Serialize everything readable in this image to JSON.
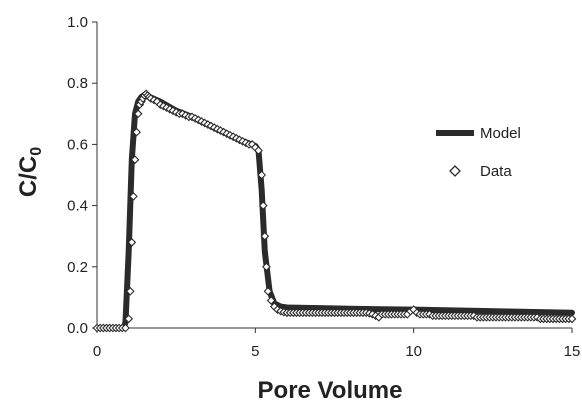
{
  "chart_data": {
    "type": "scatter",
    "title": "",
    "xlabel": "Pore Volume",
    "ylabel_main": "C/C",
    "ylabel_sub": "0",
    "xlim": [
      0,
      15
    ],
    "ylim": [
      0,
      1.0
    ],
    "xticks": [
      "0",
      "5",
      "10",
      "15"
    ],
    "yticks": [
      "0.0",
      "0.2",
      "0.4",
      "0.6",
      "0.8",
      "1.0"
    ],
    "grid": false,
    "legend_position": "right",
    "series": [
      {
        "name": "Model",
        "kind": "line",
        "color": "#2b2b2b",
        "x": [
          0,
          0.85,
          0.9,
          1.0,
          1.1,
          1.2,
          1.3,
          1.4,
          1.5,
          1.6,
          2.0,
          2.5,
          3.0,
          3.5,
          4.0,
          4.5,
          5.0,
          5.1,
          5.2,
          5.3,
          5.45,
          5.6,
          5.8,
          6.0,
          7.0,
          8.0,
          9.0,
          10.0,
          11.0,
          12.0,
          13.0,
          14.0,
          15.0
        ],
        "y": [
          0,
          0,
          0.02,
          0.25,
          0.55,
          0.7,
          0.74,
          0.755,
          0.762,
          0.758,
          0.74,
          0.71,
          0.69,
          0.665,
          0.64,
          0.615,
          0.595,
          0.58,
          0.45,
          0.25,
          0.12,
          0.08,
          0.07,
          0.067,
          0.065,
          0.063,
          0.061,
          0.06,
          0.058,
          0.056,
          0.054,
          0.052,
          0.05
        ]
      },
      {
        "name": "Data",
        "kind": "markers",
        "marker": "diamond",
        "color": "#2b2b2b",
        "x": [
          0.0,
          0.1,
          0.2,
          0.3,
          0.4,
          0.5,
          0.6,
          0.7,
          0.8,
          0.9,
          1.0,
          1.05,
          1.1,
          1.15,
          1.2,
          1.25,
          1.3,
          1.35,
          1.4,
          1.45,
          1.5,
          1.55,
          1.6,
          1.65,
          1.7,
          1.8,
          1.9,
          2.0,
          2.1,
          2.2,
          2.3,
          2.4,
          2.5,
          2.6,
          2.7,
          2.8,
          2.9,
          3.0,
          3.1,
          3.2,
          3.3,
          3.4,
          3.5,
          3.6,
          3.7,
          3.8,
          3.9,
          4.0,
          4.1,
          4.2,
          4.3,
          4.4,
          4.5,
          4.6,
          4.7,
          4.8,
          4.9,
          5.0,
          5.1,
          5.2,
          5.25,
          5.3,
          5.35,
          5.4,
          5.5,
          5.6,
          5.7,
          5.8,
          5.9,
          6.0,
          6.1,
          6.2,
          6.3,
          6.4,
          6.5,
          6.6,
          6.7,
          6.8,
          6.9,
          7.0,
          7.1,
          7.2,
          7.3,
          7.4,
          7.5,
          7.6,
          7.7,
          7.8,
          7.9,
          8.0,
          8.1,
          8.2,
          8.3,
          8.4,
          8.5,
          8.6,
          8.7,
          8.8,
          8.9,
          9.0,
          9.1,
          9.2,
          9.3,
          9.4,
          9.5,
          9.6,
          9.7,
          9.8,
          9.9,
          10.0,
          10.1,
          10.2,
          10.3,
          10.4,
          10.5,
          10.6,
          10.7,
          10.8,
          10.9,
          11.0,
          11.1,
          11.2,
          11.3,
          11.4,
          11.5,
          11.6,
          11.7,
          11.8,
          11.9,
          12.0,
          12.1,
          12.2,
          12.3,
          12.4,
          12.5,
          12.6,
          12.7,
          12.8,
          12.9,
          13.0,
          13.1,
          13.2,
          13.3,
          13.4,
          13.5,
          13.6,
          13.7,
          13.8,
          13.9,
          14.0,
          14.1,
          14.2,
          14.3,
          14.4,
          14.5,
          14.6,
          14.7,
          14.8,
          14.9,
          15.0
        ],
        "y": [
          0.0,
          0.0,
          0.0,
          0.0,
          0.0,
          0.0,
          0.0,
          0.0,
          0.0,
          0.0,
          0.03,
          0.12,
          0.28,
          0.43,
          0.55,
          0.64,
          0.7,
          0.73,
          0.74,
          0.75,
          0.76,
          0.765,
          0.76,
          0.755,
          0.75,
          0.745,
          0.74,
          0.73,
          0.725,
          0.72,
          0.715,
          0.71,
          0.705,
          0.7,
          0.7,
          0.695,
          0.69,
          0.69,
          0.685,
          0.68,
          0.675,
          0.67,
          0.665,
          0.66,
          0.655,
          0.65,
          0.645,
          0.64,
          0.635,
          0.63,
          0.625,
          0.62,
          0.615,
          0.61,
          0.605,
          0.6,
          0.6,
          0.59,
          0.58,
          0.5,
          0.4,
          0.3,
          0.2,
          0.12,
          0.09,
          0.07,
          0.06,
          0.055,
          0.052,
          0.05,
          0.05,
          0.05,
          0.05,
          0.05,
          0.05,
          0.05,
          0.05,
          0.05,
          0.05,
          0.05,
          0.05,
          0.05,
          0.05,
          0.05,
          0.05,
          0.05,
          0.05,
          0.05,
          0.05,
          0.05,
          0.05,
          0.05,
          0.05,
          0.05,
          0.05,
          0.048,
          0.045,
          0.04,
          0.035,
          0.045,
          0.045,
          0.045,
          0.045,
          0.045,
          0.045,
          0.045,
          0.045,
          0.045,
          0.055,
          0.06,
          0.05,
          0.045,
          0.045,
          0.045,
          0.045,
          0.04,
          0.04,
          0.04,
          0.04,
          0.04,
          0.04,
          0.04,
          0.04,
          0.04,
          0.04,
          0.04,
          0.04,
          0.04,
          0.04,
          0.035,
          0.035,
          0.035,
          0.035,
          0.035,
          0.035,
          0.035,
          0.035,
          0.035,
          0.035,
          0.035,
          0.035,
          0.035,
          0.035,
          0.035,
          0.035,
          0.035,
          0.035,
          0.035,
          0.035,
          0.03,
          0.03,
          0.03,
          0.03,
          0.03,
          0.03,
          0.03,
          0.03,
          0.03,
          0.03,
          0.03
        ]
      }
    ]
  }
}
